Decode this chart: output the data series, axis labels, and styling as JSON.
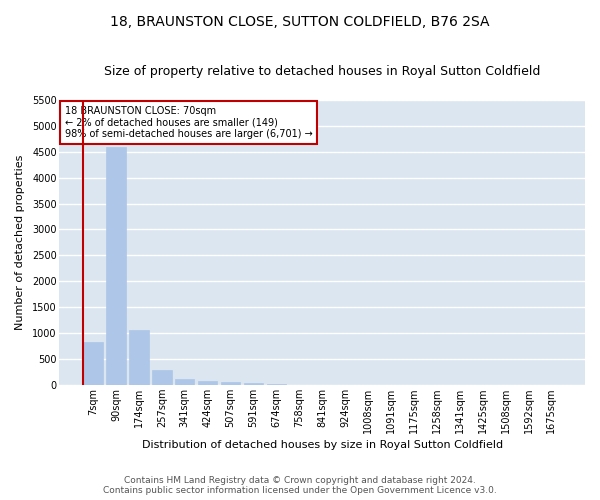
{
  "title1": "18, BRAUNSTON CLOSE, SUTTON COLDFIELD, B76 2SA",
  "title2": "Size of property relative to detached houses in Royal Sutton Coldfield",
  "xlabel": "Distribution of detached houses by size in Royal Sutton Coldfield",
  "ylabel": "Number of detached properties",
  "footer1": "Contains HM Land Registry data © Crown copyright and database right 2024.",
  "footer2": "Contains public sector information licensed under the Open Government Licence v3.0.",
  "annotation_line1": "18 BRAUNSTON CLOSE: 70sqm",
  "annotation_line2": "← 2% of detached houses are smaller (149)",
  "annotation_line3": "98% of semi-detached houses are larger (6,701) →",
  "bar_categories": [
    "7sqm",
    "90sqm",
    "174sqm",
    "257sqm",
    "341sqm",
    "424sqm",
    "507sqm",
    "591sqm",
    "674sqm",
    "758sqm",
    "841sqm",
    "924sqm",
    "1008sqm",
    "1091sqm",
    "1175sqm",
    "1258sqm",
    "1341sqm",
    "1425sqm",
    "1508sqm",
    "1592sqm",
    "1675sqm"
  ],
  "bar_values": [
    830,
    4600,
    1060,
    290,
    105,
    65,
    55,
    30,
    10,
    0,
    0,
    0,
    0,
    0,
    0,
    0,
    0,
    0,
    0,
    0,
    0
  ],
  "bar_color": "#aec6e8",
  "red_color": "#c00000",
  "ylim_max": 5500,
  "yticks": [
    0,
    500,
    1000,
    1500,
    2000,
    2500,
    3000,
    3500,
    4000,
    4500,
    5000,
    5500
  ],
  "bg_color": "#dce6f1",
  "grid_color": "#ffffff",
  "red_line_at_bar_index": 0,
  "title1_fontsize": 10,
  "title2_fontsize": 9,
  "axis_label_fontsize": 8,
  "tick_fontsize": 7,
  "annotation_fontsize": 7,
  "footer_fontsize": 6.5
}
